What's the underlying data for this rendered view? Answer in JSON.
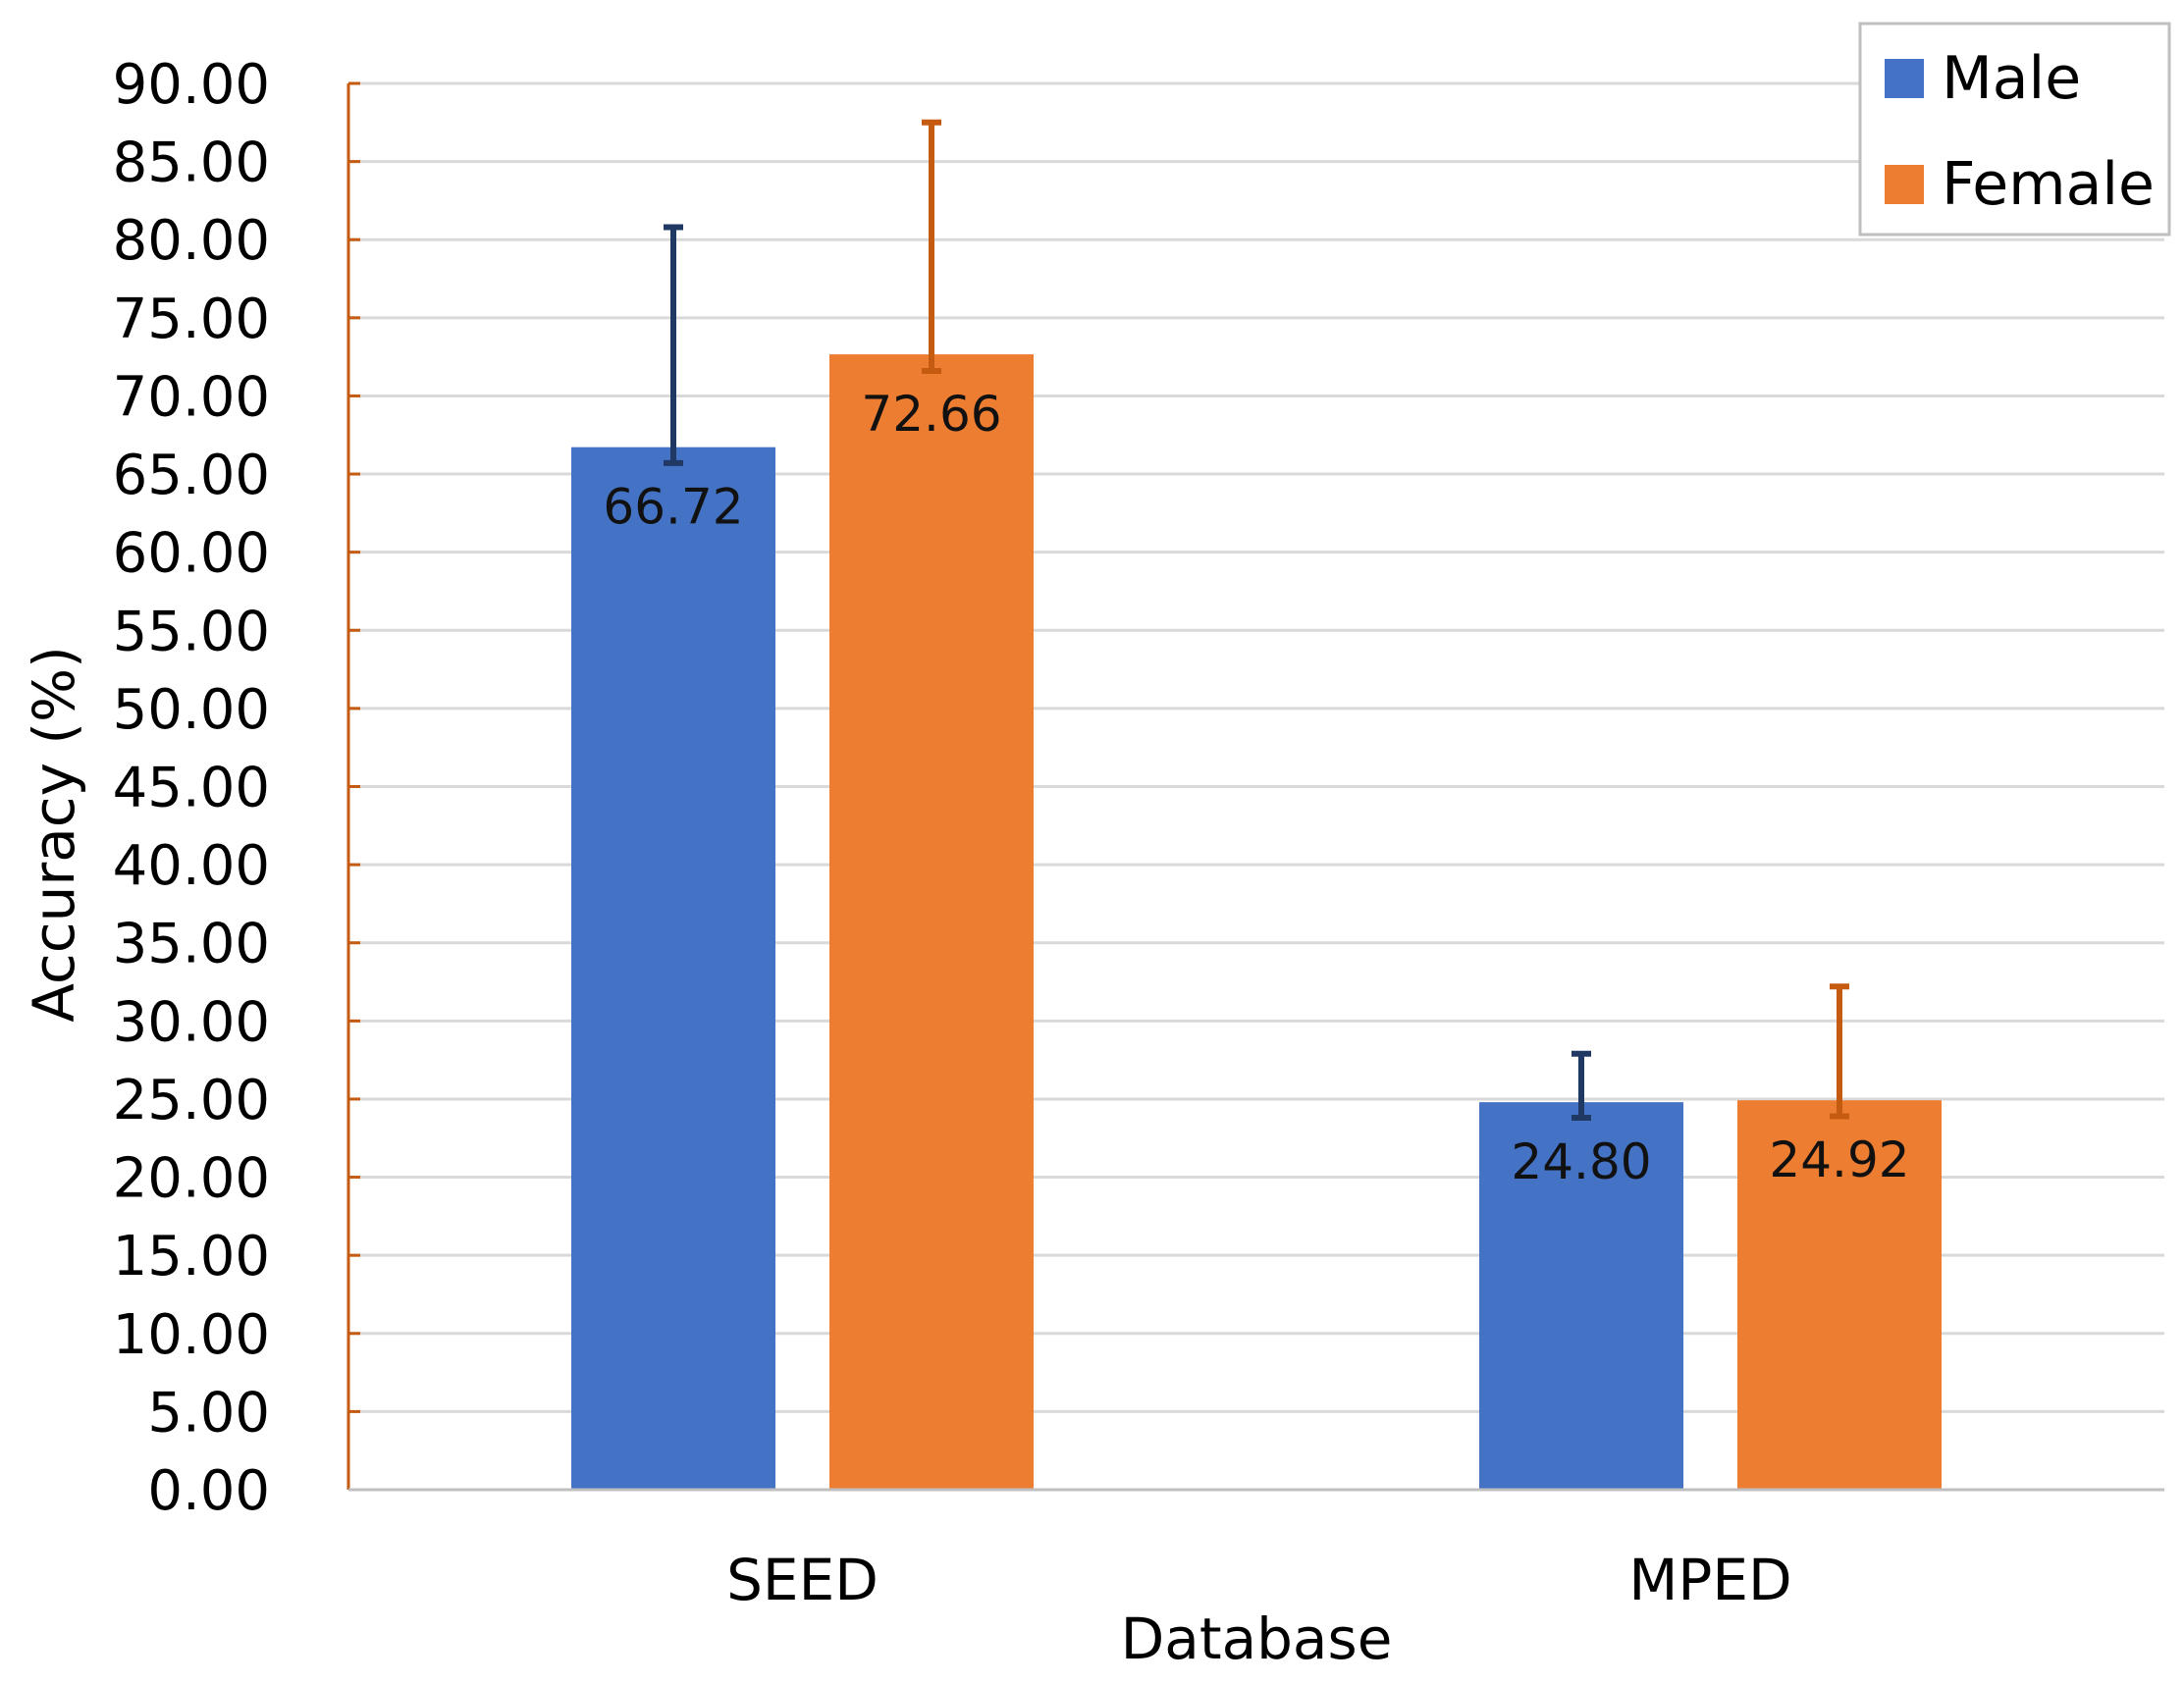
{
  "chart_data": {
    "type": "bar",
    "title": "",
    "xlabel": "Database",
    "ylabel": "Accuracy (%)",
    "categories": [
      "SEED",
      "MPED"
    ],
    "series": [
      {
        "name": "Male",
        "color": "#4472C4",
        "error_color": "#203864",
        "values": [
          66.72,
          24.8
        ],
        "error_upper": [
          80.8,
          27.9
        ],
        "error_lower": [
          65.7,
          23.8
        ],
        "labels": [
          "66.72",
          "24.80"
        ]
      },
      {
        "name": "Female",
        "color": "#ED7D31",
        "error_color": "#C55A11",
        "values": [
          72.66,
          24.92
        ],
        "error_upper": [
          87.5,
          32.2
        ],
        "error_lower": [
          71.6,
          23.9
        ],
        "labels": [
          "72.66",
          "24.92"
        ]
      }
    ],
    "ylim": [
      0,
      90
    ],
    "yticks": [
      "0.00",
      "5.00",
      "10.00",
      "15.00",
      "20.00",
      "25.00",
      "30.00",
      "35.00",
      "40.00",
      "45.00",
      "50.00",
      "55.00",
      "60.00",
      "65.00",
      "70.00",
      "75.00",
      "80.00",
      "85.00",
      "90.00"
    ],
    "grid": true,
    "axis_color": "#C55A11",
    "grid_color": "#D9D9D9",
    "legend_position": "top-right"
  }
}
